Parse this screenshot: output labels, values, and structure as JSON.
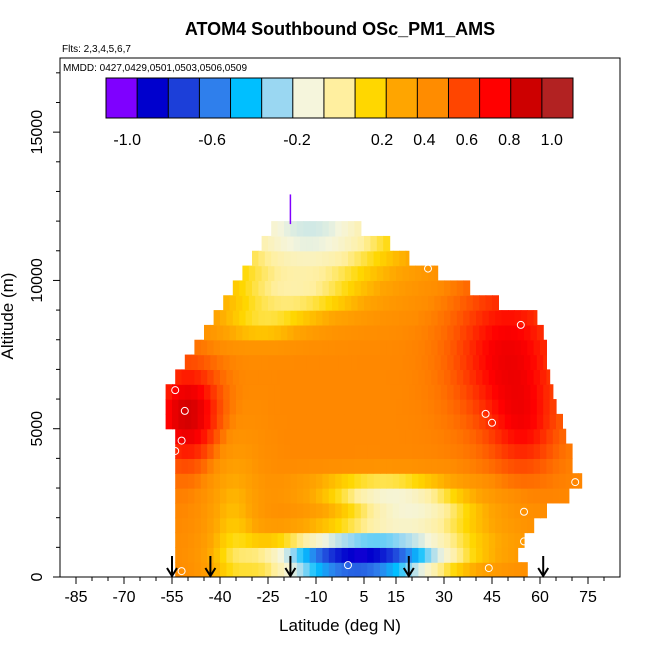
{
  "chart_data": {
    "type": "heatmap",
    "title": "ATOM4 Southbound OSc_PM1_AMS",
    "flights_label": "Flts: 2,3,4,5,6,7",
    "dates_label": "MMDD: 0427,0429,0501,0503,0506,0509",
    "xlabel": "Latitude (deg N)",
    "ylabel": "Altitude (m)",
    "xlim": [
      -90,
      85
    ],
    "ylim": [
      0,
      17500
    ],
    "x_ticks": [
      -85,
      -70,
      -55,
      -40,
      -25,
      -10,
      5,
      15,
      30,
      45,
      60,
      75
    ],
    "y_ticks": [
      0,
      5000,
      10000,
      15000
    ],
    "grid": false,
    "colorbar": {
      "range": [
        -1.1,
        1.1
      ],
      "tick_values": [
        -1.0,
        -0.6,
        -0.2,
        0.2,
        0.4,
        0.6,
        0.8,
        1.0
      ],
      "tick_labels": [
        "-1.0",
        "-0.6",
        "-0.2",
        "0.2",
        "0.4",
        "0.6",
        "0.8",
        "1.0"
      ],
      "colors": [
        "#7f00ff",
        "#0000cd",
        "#1c3fd9",
        "#2f7fec",
        "#00bfff",
        "#9ad7f2",
        "#f5f5dc",
        "#ffef9f",
        "#ffd700",
        "#ffa500",
        "#ff8c00",
        "#ff4500",
        "#ff0000",
        "#cd0000",
        "#b22222"
      ]
    },
    "boundary": [
      {
        "alt": 250,
        "south": -54,
        "north": 56
      },
      {
        "alt": 750,
        "south": -54,
        "north": 53
      },
      {
        "alt": 1250,
        "south": -54,
        "north": 55
      },
      {
        "alt": 1750,
        "south": -54,
        "north": 58
      },
      {
        "alt": 2250,
        "south": -54,
        "north": 62
      },
      {
        "alt": 2750,
        "south": -54,
        "north": 69
      },
      {
        "alt": 3250,
        "south": -54,
        "north": 73
      },
      {
        "alt": 3750,
        "south": -54,
        "north": 70
      },
      {
        "alt": 4250,
        "south": -54,
        "north": 70
      },
      {
        "alt": 4750,
        "south": -54,
        "north": 68
      },
      {
        "alt": 5250,
        "south": -57,
        "north": 67
      },
      {
        "alt": 5750,
        "south": -57,
        "north": 65
      },
      {
        "alt": 6250,
        "south": -57,
        "north": 64
      },
      {
        "alt": 6750,
        "south": -54,
        "north": 63
      },
      {
        "alt": 7250,
        "south": -51,
        "north": 62
      },
      {
        "alt": 7750,
        "south": -48,
        "north": 62
      },
      {
        "alt": 8250,
        "south": -45,
        "north": 61
      },
      {
        "alt": 8750,
        "south": -42,
        "north": 59
      },
      {
        "alt": 9250,
        "south": -39,
        "north": 47
      },
      {
        "alt": 9750,
        "south": -36,
        "north": 38
      },
      {
        "alt": 10250,
        "south": -33,
        "north": 28
      },
      {
        "alt": 10750,
        "south": -30,
        "north": 19
      },
      {
        "alt": 11250,
        "south": -27,
        "north": 13
      },
      {
        "alt": 11750,
        "south": -24,
        "north": 4
      }
    ],
    "sonde_points": [
      {
        "lat": -54,
        "alt": 6300
      },
      {
        "lat": -51,
        "alt": 5600
      },
      {
        "lat": -52,
        "alt": 4600
      },
      {
        "lat": -54,
        "alt": 4250
      },
      {
        "lat": 43,
        "alt": 5500
      },
      {
        "lat": 45,
        "alt": 5200
      },
      {
        "lat": 54,
        "alt": 8500
      },
      {
        "lat": 71,
        "alt": 3200
      },
      {
        "lat": 55,
        "alt": 2200
      },
      {
        "lat": 55,
        "alt": 1200
      },
      {
        "lat": 25,
        "alt": 10400
      },
      {
        "lat": 0,
        "alt": 400
      },
      {
        "lat": 44,
        "alt": 300
      },
      {
        "lat": -52,
        "alt": 200
      },
      {
        "lat": -56,
        "alt": 200
      }
    ],
    "flight_markers_lat": [
      -55,
      -43,
      -18,
      19,
      61
    ],
    "top_marker": {
      "lat": -18,
      "alt": 12300
    }
  }
}
